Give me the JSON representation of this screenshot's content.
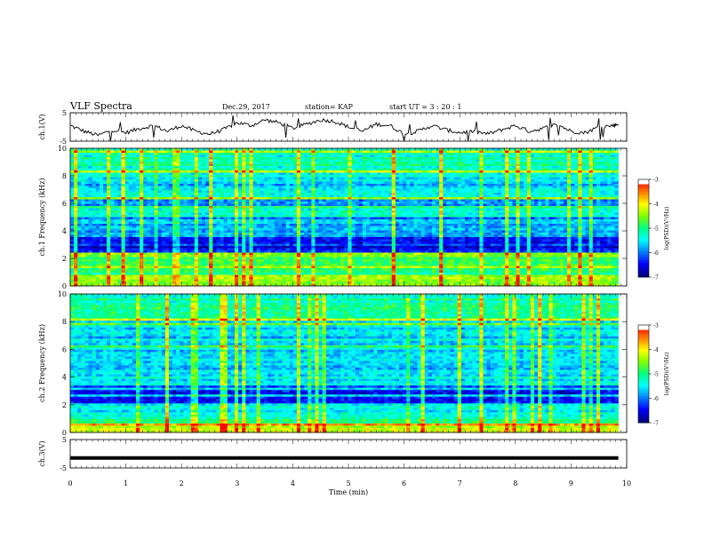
{
  "header": {
    "title": "VLF Spectra",
    "date": "Dec.29, 2017",
    "station": "station= KAP",
    "start": "start  UT  =   3  : 20 : 1"
  },
  "chart_data": [
    {
      "type": "line",
      "panel": "ch1-waveform",
      "ylabel": "ch.1(V)",
      "ylim": [
        -5,
        5
      ],
      "yticks": [
        "5",
        "-5"
      ],
      "x": [
        0,
        0.25,
        0.5,
        0.75,
        1.0,
        1.25,
        1.5,
        1.75,
        2.0,
        2.25,
        2.5,
        2.75,
        3.0,
        3.25,
        3.5,
        3.75,
        4.0,
        4.25,
        4.5,
        4.75,
        5.0,
        5.25,
        5.5,
        5.75,
        6.0,
        6.25,
        6.5,
        6.75,
        7.0,
        7.25,
        7.5,
        7.75,
        8.0,
        8.25,
        8.5,
        8.75,
        9.0,
        9.25,
        9.5,
        9.75,
        9.85
      ],
      "values": [
        0.5,
        -1.5,
        -3.0,
        -1.0,
        -2.0,
        -0.5,
        0.5,
        -1.5,
        0.5,
        -1.5,
        -2.5,
        -1.0,
        1.5,
        0.5,
        2.5,
        1.5,
        -0.5,
        1.0,
        2.5,
        2.0,
        0.0,
        -1.5,
        1.0,
        0.5,
        -2.5,
        -1.5,
        0.5,
        -1.0,
        -2.0,
        -1.5,
        -2.5,
        -1.0,
        0.5,
        -1.5,
        -0.5,
        1.0,
        -1.5,
        -2.0,
        0.0,
        0.5,
        1.0
      ]
    },
    {
      "type": "heatmap",
      "panel": "ch1-spectrogram",
      "ylabel": "ch.1 Frequency (kHz)",
      "ylim": [
        0,
        10
      ],
      "yticks": [
        "0",
        "2",
        "4",
        "6",
        "8",
        "10"
      ],
      "freq_bands": [
        {
          "from": 0.0,
          "to": 0.8,
          "level": -4.5
        },
        {
          "from": 0.8,
          "to": 1.5,
          "level": -5.2
        },
        {
          "from": 1.5,
          "to": 2.5,
          "level": -4.8
        },
        {
          "from": 2.5,
          "to": 3.6,
          "level": -6.6
        },
        {
          "from": 3.6,
          "to": 5.0,
          "level": -6.0
        },
        {
          "from": 5.0,
          "to": 5.6,
          "level": -5.4
        },
        {
          "from": 5.6,
          "to": 6.3,
          "level": -6.2
        },
        {
          "from": 6.3,
          "to": 7.2,
          "level": -5.5
        },
        {
          "from": 7.2,
          "to": 7.9,
          "level": -5.8
        },
        {
          "from": 7.9,
          "to": 10.0,
          "level": -5.4
        }
      ],
      "colorbar": {
        "label": "log(PSD)(V²/Hz)",
        "ticks": [
          "-3",
          "-4",
          "-5",
          "-6",
          "-7"
        ],
        "range": [
          -7,
          -3
        ]
      }
    },
    {
      "type": "heatmap",
      "panel": "ch2-spectrogram",
      "ylabel": "ch.2 Frequency (kHz)",
      "ylim": [
        0,
        10
      ],
      "yticks": [
        "0",
        "2",
        "4",
        "6",
        "8",
        "10"
      ],
      "freq_bands": [
        {
          "from": 0.0,
          "to": 0.6,
          "level": -4.4
        },
        {
          "from": 0.6,
          "to": 1.5,
          "level": -5.3
        },
        {
          "from": 1.5,
          "to": 2.1,
          "level": -5.6
        },
        {
          "from": 2.1,
          "to": 3.4,
          "level": -6.5
        },
        {
          "from": 3.4,
          "to": 4.5,
          "level": -5.6
        },
        {
          "from": 4.5,
          "to": 6.0,
          "level": -5.8
        },
        {
          "from": 6.0,
          "to": 8.0,
          "level": -5.7
        },
        {
          "from": 8.0,
          "to": 10.0,
          "level": -5.3
        }
      ],
      "colorbar": {
        "label": "log(PSD)(V²/Hz)",
        "ticks": [
          "-3",
          "-4",
          "-5",
          "-6",
          "-7"
        ],
        "range": [
          -7,
          -3
        ]
      }
    },
    {
      "type": "line",
      "panel": "ch3-waveform",
      "ylabel": "ch.3(V)",
      "ylim": [
        -5,
        5
      ],
      "yticks": [
        "5",
        "-5"
      ],
      "x": [
        0,
        9.85
      ],
      "values": [
        -1.5,
        -1.5
      ]
    }
  ],
  "xaxis": {
    "label": "Time  (min)",
    "xlim": [
      0,
      10
    ],
    "ticks": [
      "0",
      "1",
      "2",
      "3",
      "4",
      "5",
      "6",
      "7",
      "8",
      "9",
      "10"
    ]
  },
  "colors": {
    "background": "#ffffff",
    "axis": "#000000",
    "colormap": [
      "#000080",
      "#0000ff",
      "#0080ff",
      "#00ffff",
      "#00ff80",
      "#80ff00",
      "#ffff00",
      "#ff8000",
      "#ff0000",
      "#ffffff"
    ]
  }
}
